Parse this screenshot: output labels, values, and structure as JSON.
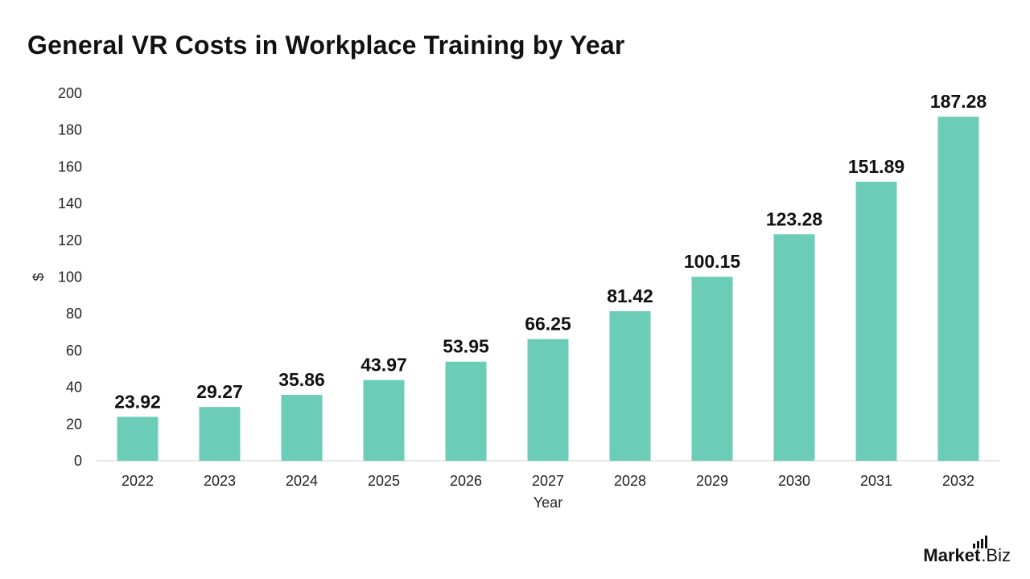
{
  "chart_data": {
    "type": "bar",
    "title": "General VR Costs in Workplace Training by Year",
    "xlabel": "Year",
    "ylabel": "$",
    "categories": [
      "2022",
      "2023",
      "2024",
      "2025",
      "2026",
      "2027",
      "2028",
      "2029",
      "2030",
      "2031",
      "2032"
    ],
    "values": [
      23.92,
      29.27,
      35.86,
      43.97,
      53.95,
      66.25,
      81.42,
      100.15,
      123.28,
      151.89,
      187.28
    ],
    "value_labels": [
      "23.92",
      "29.27",
      "35.86",
      "43.97",
      "53.95",
      "66.25",
      "81.42",
      "100.15",
      "123.28",
      "151.89",
      "187.28"
    ],
    "ylim": [
      0,
      200
    ],
    "yticks": [
      0,
      20,
      40,
      60,
      80,
      100,
      120,
      140,
      160,
      180,
      200
    ],
    "grid": false,
    "legend": "none",
    "bar_color": "#6BCDB8"
  },
  "brand": {
    "name_bold": "Market",
    "name_rest": ".Biz",
    "icon": "bar-chart-icon"
  }
}
